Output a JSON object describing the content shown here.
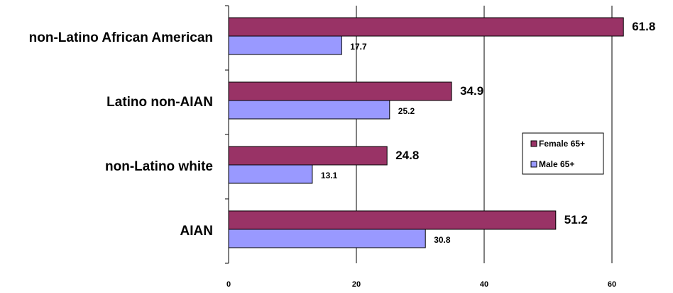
{
  "chart_data": {
    "type": "bar",
    "orientation": "horizontal",
    "title": "",
    "categories": [
      "non-Latino African American",
      "Latino non-AIAN",
      "non-Latino white",
      "AIAN"
    ],
    "series": [
      {
        "name": "Female 65+",
        "values": [
          61.8,
          34.9,
          24.8,
          51.2
        ],
        "color": "#993366",
        "labels": [
          "61.8",
          "34.9",
          "24.8",
          "51.2"
        ]
      },
      {
        "name": "Male 65+",
        "values": [
          17.7,
          25.2,
          13.1,
          30.8
        ],
        "color": "#9999FF",
        "labels": [
          "17.7",
          "25.2",
          "13.1",
          "30.8"
        ]
      }
    ],
    "xlim": [
      0,
      70
    ],
    "x_ticks": [
      "0",
      "20",
      "40",
      "60"
    ],
    "grid": "vertical gridlines at 20, 40, 60",
    "legend": "right",
    "colors": {
      "female": "#993366",
      "male": "#9999FF",
      "grid": "#000000"
    }
  }
}
